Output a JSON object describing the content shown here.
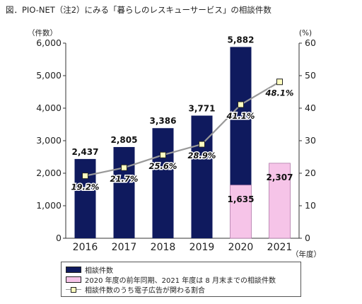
{
  "title": "図．PIO-NET（注2）にみる「暮らしのレスキューサービス」の相談件数",
  "chart_data": {
    "type": "bar",
    "categories": [
      "2016",
      "2017",
      "2018",
      "2019",
      "2020",
      "2021"
    ],
    "series": [
      {
        "name": "相談件数",
        "color": "#0f1a5e",
        "values": [
          2437,
          2805,
          3386,
          3771,
          5882,
          null
        ],
        "labels": [
          "2,437",
          "2,805",
          "3,386",
          "3,771",
          "5,882",
          ""
        ]
      },
      {
        "name": "2020 年度の前年同期、2021 年度は 8 月末までの相談件数",
        "color": "#f6c4e8",
        "values": [
          null,
          null,
          null,
          null,
          1635,
          2307
        ],
        "labels": [
          "",
          "",
          "",
          "",
          "1,635",
          "2,307"
        ]
      },
      {
        "name": "相談件数のうち電子広告が関わる割合",
        "type": "line",
        "axis": "right",
        "color": "#999999",
        "values": [
          19.2,
          21.7,
          25.6,
          28.9,
          41.1,
          48.1
        ],
        "labels": [
          "19.2%",
          "21.7%",
          "25.6%",
          "28.9%",
          "41.1%",
          "48.1%"
        ]
      }
    ],
    "ylabel_left": "（件数）",
    "ylabel_right": "(%)",
    "xlabel": "（年度）",
    "ylim_left": [
      0,
      6000
    ],
    "yticks_left": [
      0,
      1000,
      2000,
      3000,
      4000,
      5000,
      6000
    ],
    "ytick_labels_left": [
      "0",
      "1,000",
      "2,000",
      "3,000",
      "4,000",
      "5,000",
      "6,000"
    ],
    "ylim_right": [
      0,
      60
    ],
    "yticks_right": [
      0,
      10,
      20,
      30,
      40,
      50,
      60
    ],
    "ytick_labels_right": [
      "0",
      "10",
      "20",
      "30",
      "40",
      "50",
      "60"
    ],
    "grid": false,
    "legend_position": "bottom"
  }
}
